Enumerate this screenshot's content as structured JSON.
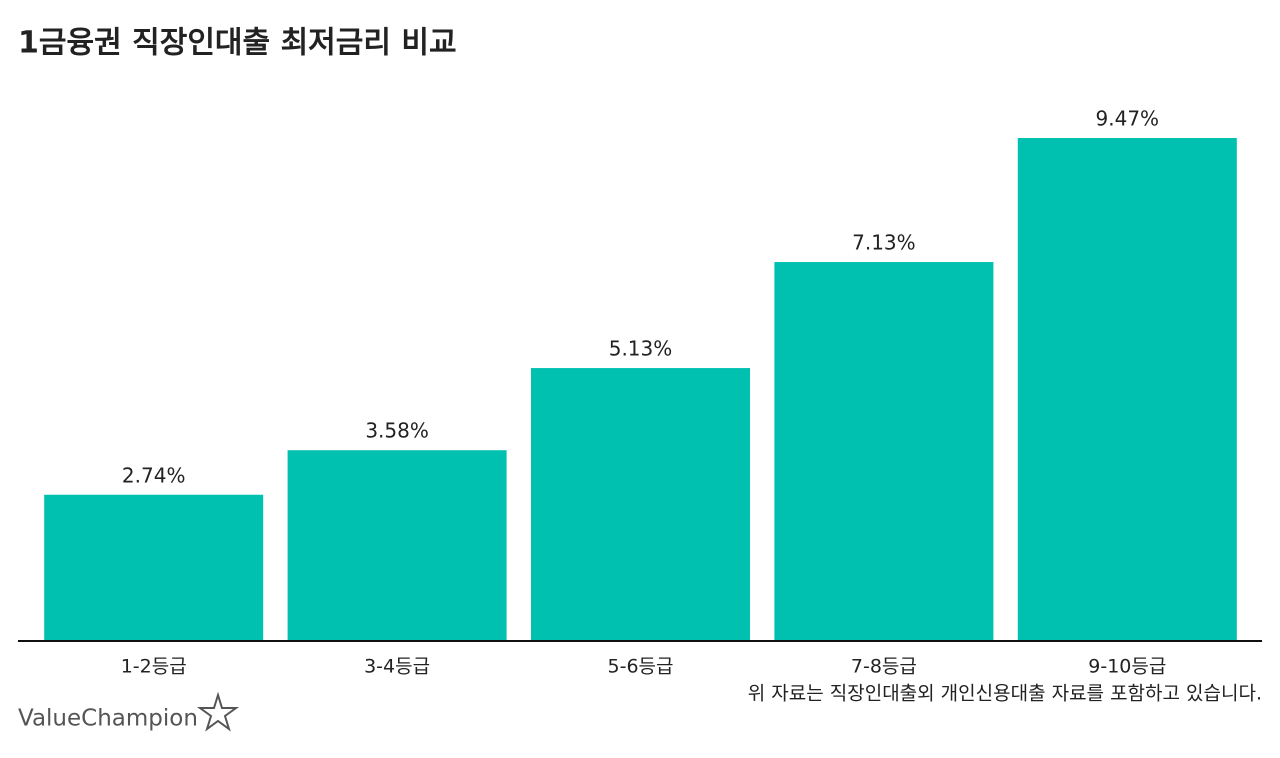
{
  "chart_data": {
    "type": "bar",
    "title": "1금융권 직장인대출 최저금리 비교",
    "categories": [
      "1-2등급",
      "3-4등급",
      "5-6등급",
      "7-8등급",
      "9-10등급"
    ],
    "values": [
      2.74,
      3.58,
      5.13,
      7.13,
      9.47
    ],
    "value_labels": [
      "2.74%",
      "3.58%",
      "5.13%",
      "7.13%",
      "9.47%"
    ],
    "color": "#00c1b0",
    "note": "위 자료는 직장인대출외 개인신용대출 자료를 포함하고 있습니다.",
    "brand": "ValueChampion"
  }
}
